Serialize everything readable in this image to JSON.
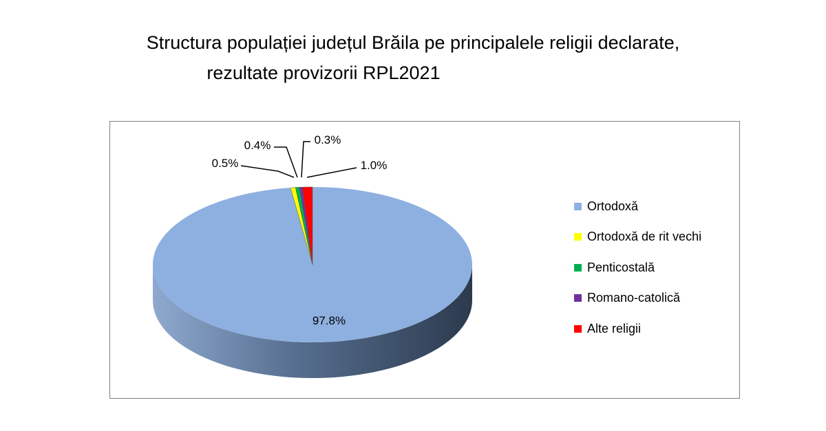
{
  "chart_data": {
    "type": "pie",
    "title_line1": "Structura populației județul Brăila pe principalele religii declarate,",
    "title_line2": "rezultate provizorii RPL2021",
    "categories": [
      "Ortodoxă",
      "Ortodoxă de rit vechi",
      "Penticostală",
      "Romano-catolică",
      "Alte religii"
    ],
    "values": [
      97.8,
      0.5,
      0.4,
      0.3,
      1.0
    ],
    "labels": [
      "97.8%",
      "0.5%",
      "0.4%",
      "0.3%",
      "1.0%"
    ],
    "colors": [
      "#8eb0e0",
      "#ffff00",
      "#00b050",
      "#7030a0",
      "#ff0000"
    ],
    "legend_position": "right",
    "style": "3d"
  }
}
